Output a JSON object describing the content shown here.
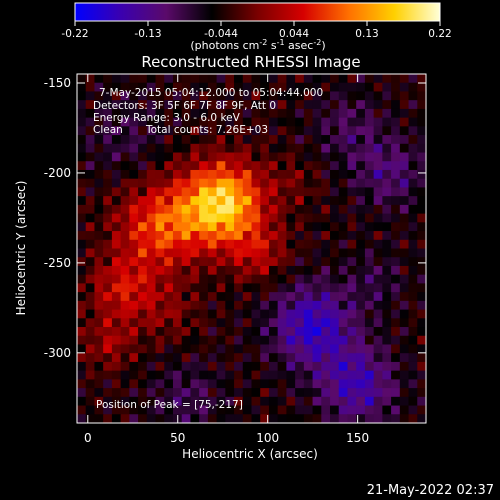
{
  "colorbar": {
    "ticks": [
      "-0.22",
      "-0.13",
      "-0.044",
      "0.044",
      "0.13",
      "0.22"
    ],
    "unit_label": "(photons cm",
    "unit_exp1": "-2",
    "unit_mid": " s",
    "unit_exp2": "-1",
    "unit_tail": " asec",
    "unit_exp3": "-2",
    "unit_close": ")",
    "colors": [
      "#0000ff",
      "#3a00b0",
      "#5a0a6a",
      "#000000",
      "#7a0000",
      "#d60000",
      "#ff7000",
      "#ffd000",
      "#ffffd8"
    ]
  },
  "title": "Reconstructed RHESSI Image",
  "info": {
    "time": "7-May-2015 05:04:12.000 to 05:04:44.000",
    "detectors": "Detectors: 3F 5F 6F 7F 8F 9F, Att 0",
    "energy": "Energy Range: 3.0 - 6.0 keV",
    "clean": "Clean",
    "counts": "Total counts: 7.26E+03"
  },
  "peak": "Position of Peak = [75,-217]",
  "timestamp": "21-May-2022 02:37",
  "chart_data": {
    "type": "heatmap",
    "xlabel": "Heliocentric X (arcsec)",
    "ylabel": "Heliocentric Y (arcsec)",
    "xlim": [
      -6,
      188
    ],
    "ylim": [
      -339,
      -145
    ],
    "x_ticks": [
      0,
      50,
      100,
      150
    ],
    "y_ticks": [
      -150,
      -200,
      -250,
      -300
    ],
    "grid": false,
    "peak_position": [
      75,
      -217
    ],
    "peak_value": 0.22,
    "sources": [
      {
        "x": 75,
        "y": -217,
        "amp": 0.22,
        "sigma": 16
      },
      {
        "x": 40,
        "y": -230,
        "amp": 0.13,
        "sigma": 17
      },
      {
        "x": 20,
        "y": -265,
        "amp": 0.09,
        "sigma": 13
      },
      {
        "x": 12,
        "y": -295,
        "amp": 0.06,
        "sigma": 10
      },
      {
        "x": 95,
        "y": -245,
        "amp": 0.07,
        "sigma": 11
      },
      {
        "x": 45,
        "y": -278,
        "amp": 0.04,
        "sigma": 12
      },
      {
        "x": 115,
        "y": -205,
        "amp": 0.03,
        "sigma": 10
      },
      {
        "x": 125,
        "y": -285,
        "amp": -0.13,
        "sigma": 16
      },
      {
        "x": 150,
        "y": -318,
        "amp": -0.11,
        "sigma": 15
      },
      {
        "x": 168,
        "y": -200,
        "amp": -0.07,
        "sigma": 14
      },
      {
        "x": 145,
        "y": -175,
        "amp": -0.05,
        "sigma": 14
      },
      {
        "x": 20,
        "y": -180,
        "amp": -0.04,
        "sigma": 16
      },
      {
        "x": 55,
        "y": -325,
        "amp": -0.05,
        "sigma": 14
      },
      {
        "x": 160,
        "y": -260,
        "amp": -0.04,
        "sigma": 12
      }
    ]
  }
}
